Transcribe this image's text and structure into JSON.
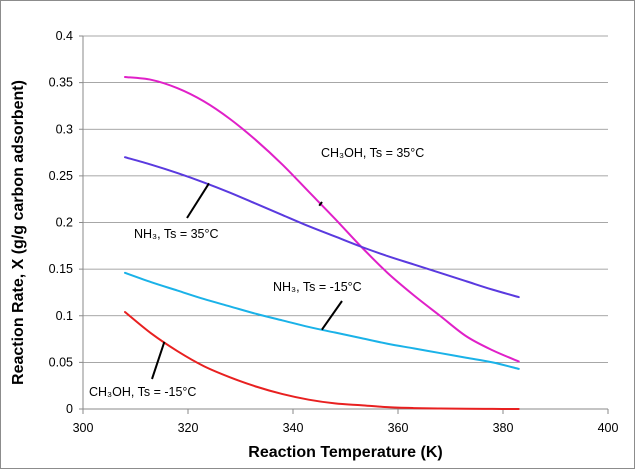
{
  "chart_data": {
    "type": "line",
    "title": "",
    "xlabel": "Reaction Temperature (K)",
    "ylabel": "Reaction Rate, X (g/g carbon adsorbent)",
    "xlim": [
      300,
      400
    ],
    "ylim": [
      0,
      0.4
    ],
    "x_ticks": [
      "300",
      "320",
      "340",
      "360",
      "380",
      "400"
    ],
    "y_ticks": [
      "0",
      "0.05",
      "0.1",
      "0.15",
      "0.2",
      "0.25",
      "0.3",
      "0.35",
      "0.4"
    ],
    "grid": "horizontal",
    "legend": "none (curves labeled by callouts)",
    "series": [
      {
        "label": "CH₃OH, Ts = 35°C",
        "color": "#e020c8",
        "x": [
          308,
          313,
          318,
          323,
          328,
          333,
          338,
          343,
          348,
          353,
          358,
          363,
          368,
          373,
          378,
          383
        ],
        "y": [
          0.356,
          0.353,
          0.344,
          0.33,
          0.311,
          0.288,
          0.262,
          0.233,
          0.204,
          0.174,
          0.146,
          0.122,
          0.1,
          0.078,
          0.063,
          0.051
        ]
      },
      {
        "label": "NH₃, Ts = 35°C",
        "color": "#5a3adf",
        "x": [
          308,
          313,
          318,
          323,
          328,
          333,
          338,
          343,
          348,
          353,
          358,
          363,
          368,
          373,
          378,
          383
        ],
        "y": [
          0.27,
          0.262,
          0.253,
          0.243,
          0.232,
          0.22,
          0.208,
          0.196,
          0.185,
          0.174,
          0.164,
          0.155,
          0.146,
          0.137,
          0.128,
          0.12
        ]
      },
      {
        "label": "NH₃, Ts = -15°C",
        "color": "#1ab2e8",
        "x": [
          308,
          313,
          318,
          323,
          328,
          333,
          338,
          343,
          348,
          353,
          358,
          363,
          368,
          373,
          378,
          383
        ],
        "y": [
          0.146,
          0.136,
          0.127,
          0.118,
          0.11,
          0.102,
          0.095,
          0.088,
          0.082,
          0.076,
          0.07,
          0.065,
          0.06,
          0.055,
          0.05,
          0.043
        ]
      },
      {
        "label": "CH₃OH, Ts = -15°C",
        "color": "#e82020",
        "x": [
          308,
          313,
          318,
          323,
          328,
          333,
          338,
          343,
          348,
          353,
          358,
          363,
          368,
          373,
          378,
          383
        ],
        "y": [
          0.104,
          0.081,
          0.062,
          0.046,
          0.034,
          0.024,
          0.016,
          0.01,
          0.006,
          0.004,
          0.002,
          0.001,
          0.0005,
          0.0002,
          0.0001,
          0.0
        ]
      }
    ],
    "annotations": [
      {
        "text": "CH₃OH, Ts = 35°C",
        "points_to": {
          "x": 345,
          "y": 0.218
        }
      },
      {
        "text": "NH₃, Ts = 35°C",
        "points_to": {
          "x": 324,
          "y": 0.242
        }
      },
      {
        "text": "NH₃, Ts = -15°C",
        "points_to": {
          "x": 345.5,
          "y": 0.085
        }
      },
      {
        "text": "CH₃OH, Ts = -15°C",
        "points_to": {
          "x": 315.5,
          "y": 0.072
        }
      }
    ]
  }
}
